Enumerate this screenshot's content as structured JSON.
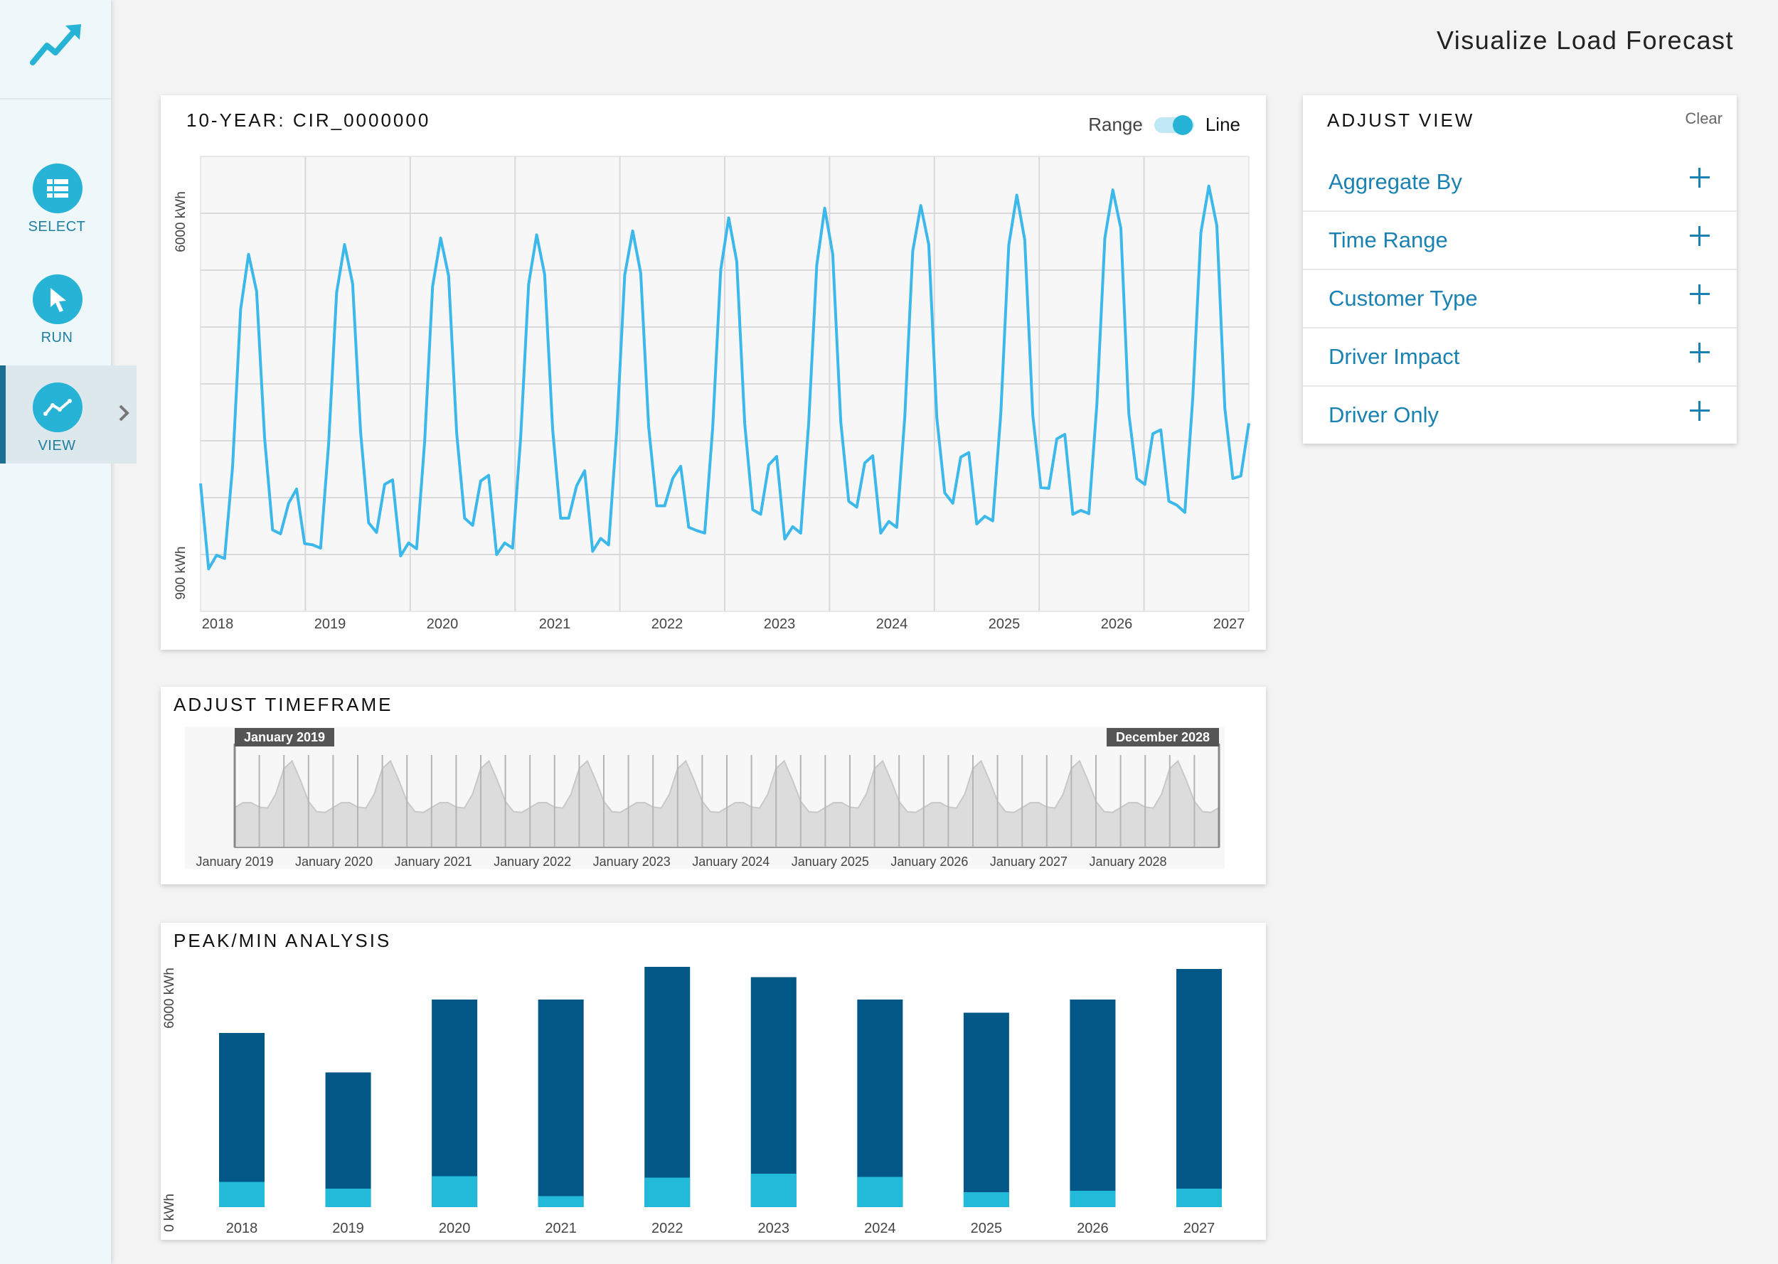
{
  "app": {
    "title": "Visualize Load Forecast"
  },
  "sidebar": {
    "items": [
      {
        "label": "SELECT",
        "icon": "list-icon"
      },
      {
        "label": "RUN",
        "icon": "cursor-icon"
      },
      {
        "label": "VIEW",
        "icon": "trend-icon",
        "active": true
      }
    ]
  },
  "main_chart": {
    "title": "10-YEAR: CIR_0000000",
    "toggle": {
      "left_label": "Range",
      "right_label": "Line",
      "state": "Line"
    }
  },
  "adjust_view": {
    "title": "ADJUST VIEW",
    "clear_label": "Clear",
    "items": [
      {
        "label": "Aggregate By"
      },
      {
        "label": "Time Range"
      },
      {
        "label": "Customer Type"
      },
      {
        "label": "Driver Impact"
      },
      {
        "label": "Driver Only"
      }
    ]
  },
  "timeframe": {
    "title": "ADJUST TIMEFRAME",
    "start_label": "January 2019",
    "end_label": "December 2028",
    "ticks": [
      "January 2019",
      "January 2020",
      "January 2021",
      "January 2022",
      "January 2023",
      "January 2024",
      "January 2025",
      "January 2026",
      "January 2027",
      "January 2028"
    ]
  },
  "peak_min": {
    "title": "PEAK/MIN ANALYSIS"
  },
  "colors": {
    "accent": "#27b3d6",
    "line": "#3db8ea",
    "bar_peak": "#015785",
    "bar_min": "#23b9d8"
  },
  "chart_data": [
    {
      "type": "line",
      "title": "10-YEAR: CIR_0000000",
      "ylabel_top": "6000 kWh",
      "ylabel_bottom": "900 kWh",
      "x_ticks": [
        "2018",
        "2019",
        "2020",
        "2021",
        "2022",
        "2023",
        "2024",
        "2025",
        "2026",
        "2027"
      ],
      "grid": true,
      "series": [
        {
          "values": [
            1925,
            610,
            820,
            770,
            2180,
            4600,
            5450,
            4880,
            2630,
            1210,
            1150,
            1620,
            1840,
            1000,
            980,
            930,
            2520,
            4860,
            5600,
            5000,
            2720,
            1320,
            1170,
            1910,
            1980,
            810,
            1010,
            920,
            2570,
            4960,
            5700,
            5120,
            2700,
            1390,
            1280,
            1960,
            2050,
            830,
            1010,
            930,
            2630,
            4990,
            5750,
            5140,
            2750,
            1390,
            1390,
            1890,
            2120,
            880,
            1080,
            980,
            2720,
            5130,
            5810,
            5160,
            2790,
            1580,
            1580,
            2000,
            2190,
            1250,
            1200,
            1160,
            2780,
            5210,
            6010,
            5340,
            2850,
            1520,
            1450,
            2210,
            2340,
            1070,
            1260,
            1160,
            2860,
            5280,
            6160,
            5450,
            2870,
            1650,
            1560,
            2240,
            2350,
            1160,
            1340,
            1250,
            2950,
            5500,
            6200,
            5600,
            2940,
            1780,
            1620,
            2330,
            2400,
            1300,
            1420,
            1350,
            3000,
            5590,
            6360,
            5670,
            2970,
            1860,
            1850,
            2610,
            2680,
            1450,
            1510,
            1460,
            3130,
            5700,
            6440,
            5850,
            3000,
            2000,
            1910,
            2690,
            2750,
            1650,
            1590,
            1480,
            3250,
            5780,
            6500,
            5890,
            3080,
            2000,
            2040,
            2850
          ]
        }
      ]
    },
    {
      "type": "area",
      "title": "ADJUST TIMEFRAME",
      "x_ticks": [
        "January 2019",
        "January 2020",
        "January 2021",
        "January 2022",
        "January 2023",
        "January 2024",
        "January 2025",
        "January 2026",
        "January 2027",
        "January 2028"
      ],
      "selection": [
        "January 2019",
        "December 2028"
      ]
    },
    {
      "type": "bar",
      "title": "PEAK/MIN ANALYSIS",
      "ylabel_top": "6000 kWh",
      "ylabel_bottom": "0 kWh",
      "categories": [
        "2018",
        "2019",
        "2020",
        "2021",
        "2022",
        "2023",
        "2024",
        "2025",
        "2026",
        "2027"
      ],
      "series": [
        {
          "values": [
            4900,
            3790,
            5840,
            5840,
            6760,
            6470,
            5840,
            5470,
            5840,
            6700
          ]
        },
        {
          "values": [
            710,
            520,
            870,
            310,
            830,
            940,
            850,
            420,
            460,
            520
          ]
        }
      ],
      "ylim": [
        0,
        6800
      ]
    }
  ]
}
